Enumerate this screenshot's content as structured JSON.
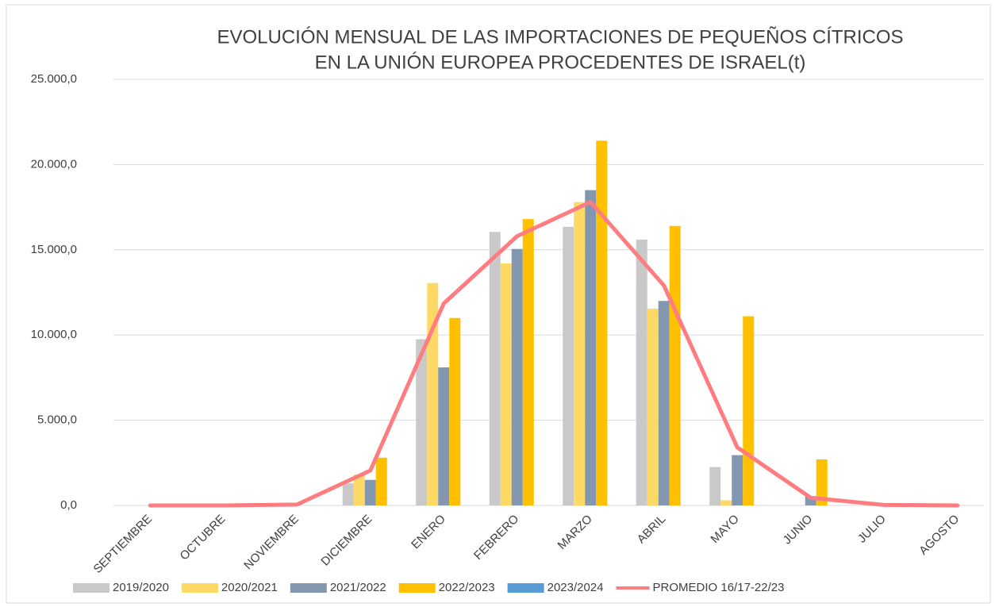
{
  "chart_data": {
    "type": "bar",
    "title": [
      "EVOLUCIÓN MENSUAL DE LAS IMPORTACIONES DE  PEQUEÑOS CÍTRICOS",
      "EN LA UNIÓN EUROPEA PROCEDENTES DE ISRAEL(t)"
    ],
    "categories": [
      "SEPTIEMBRE",
      "OCTUBRE",
      "NOVIEMBRE",
      "DICIEMBRE",
      "ENERO",
      "FEBRERO",
      "MARZO",
      "ABRIL",
      "MAYO",
      "JUNIO",
      "JULIO",
      "AGOSTO"
    ],
    "series": [
      {
        "name": "2019/2020",
        "color": "#c9c9c9",
        "values": [
          0,
          0,
          0,
          1300,
          9750,
          16050,
          16350,
          15600,
          2250,
          0,
          0,
          0
        ]
      },
      {
        "name": "2020/2021",
        "color": "#ffd966",
        "values": [
          0,
          0,
          0,
          1800,
          13050,
          14200,
          17800,
          11550,
          300,
          0,
          0,
          0
        ]
      },
      {
        "name": "2021/2022",
        "color": "#8497b0",
        "values": [
          0,
          0,
          0,
          1500,
          8100,
          15050,
          18500,
          12000,
          2950,
          550,
          0,
          0
        ]
      },
      {
        "name": "2022/2023",
        "color": "#ffc000",
        "values": [
          0,
          0,
          0,
          2800,
          11000,
          16800,
          21400,
          16400,
          11100,
          2700,
          0,
          0
        ]
      },
      {
        "name": "2023/2024",
        "color": "#5b9bd5",
        "values": [
          null,
          null,
          null,
          null,
          null,
          null,
          null,
          null,
          null,
          null,
          null,
          null
        ]
      },
      {
        "name": "PROMEDIO 16/17-22/23",
        "type": "line",
        "color": "#ff7c80",
        "values": [
          0,
          0,
          50,
          2050,
          11850,
          15800,
          17800,
          12900,
          3400,
          450,
          30,
          0
        ]
      }
    ],
    "ylim": [
      0,
      25000
    ],
    "yticks": [
      {
        "value": 0,
        "label": "0,0"
      },
      {
        "value": 5000,
        "label": "5.000,0"
      },
      {
        "value": 10000,
        "label": "10.000,0"
      },
      {
        "value": 15000,
        "label": "15.000,0"
      },
      {
        "value": 20000,
        "label": "20.000,0"
      },
      {
        "value": 25000,
        "label": "25.000,0"
      }
    ],
    "grid": true,
    "legend": "bottom"
  }
}
